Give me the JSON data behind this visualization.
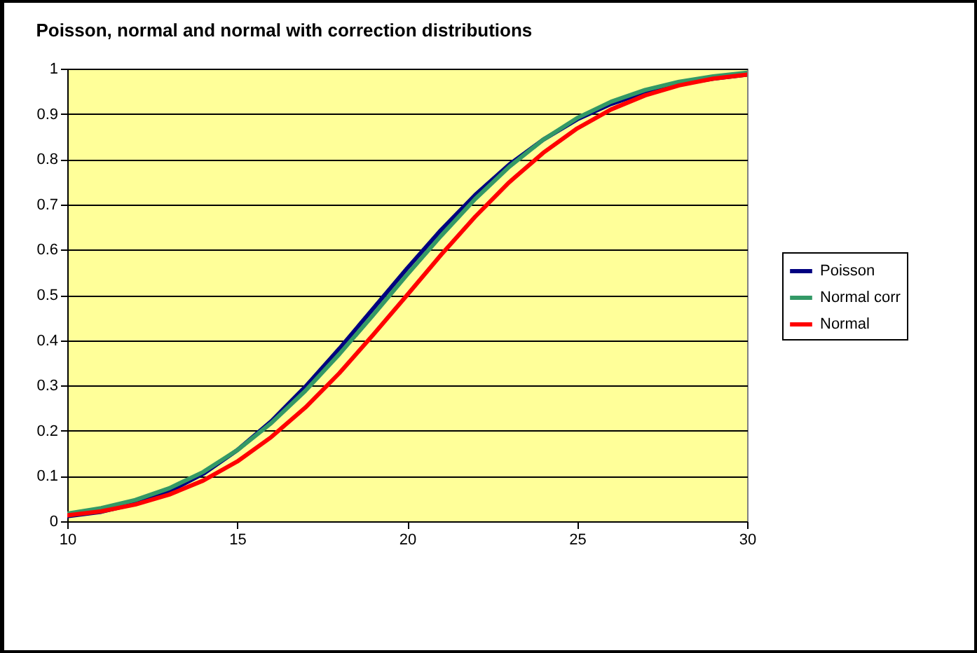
{
  "chart_data": {
    "type": "line",
    "title": "Poisson, normal and normal with correction distributions",
    "x": [
      10,
      11,
      12,
      13,
      14,
      15,
      16,
      17,
      18,
      19,
      20,
      21,
      22,
      23,
      24,
      25,
      26,
      27,
      28,
      29,
      30
    ],
    "series": [
      {
        "name": "Poisson",
        "color": "#000080",
        "values": [
          0.011,
          0.021,
          0.039,
          0.066,
          0.105,
          0.157,
          0.221,
          0.297,
          0.381,
          0.47,
          0.559,
          0.644,
          0.721,
          0.788,
          0.843,
          0.888,
          0.922,
          0.948,
          0.966,
          0.978,
          0.987
        ]
      },
      {
        "name": "Normal corr",
        "color": "#339966",
        "values": [
          0.017,
          0.029,
          0.047,
          0.073,
          0.109,
          0.157,
          0.217,
          0.288,
          0.369,
          0.456,
          0.545,
          0.631,
          0.712,
          0.783,
          0.843,
          0.891,
          0.927,
          0.953,
          0.971,
          0.983,
          0.991
        ]
      },
      {
        "name": "Normal",
        "color": "#ff0000",
        "values": [
          0.013,
          0.022,
          0.037,
          0.059,
          0.09,
          0.132,
          0.186,
          0.251,
          0.327,
          0.412,
          0.5,
          0.589,
          0.673,
          0.749,
          0.814,
          0.868,
          0.91,
          0.941,
          0.963,
          0.978,
          0.987
        ]
      }
    ],
    "xlim": [
      10,
      30
    ],
    "xticks": [
      10,
      15,
      20,
      25,
      30
    ],
    "ylim": [
      0,
      1
    ],
    "yticks": [
      0,
      0.1,
      0.2,
      0.3,
      0.4,
      0.5,
      0.6,
      0.7,
      0.8,
      0.9,
      1
    ],
    "grid": "y",
    "legend": "right",
    "marker": "none",
    "line_style": "solid"
  }
}
